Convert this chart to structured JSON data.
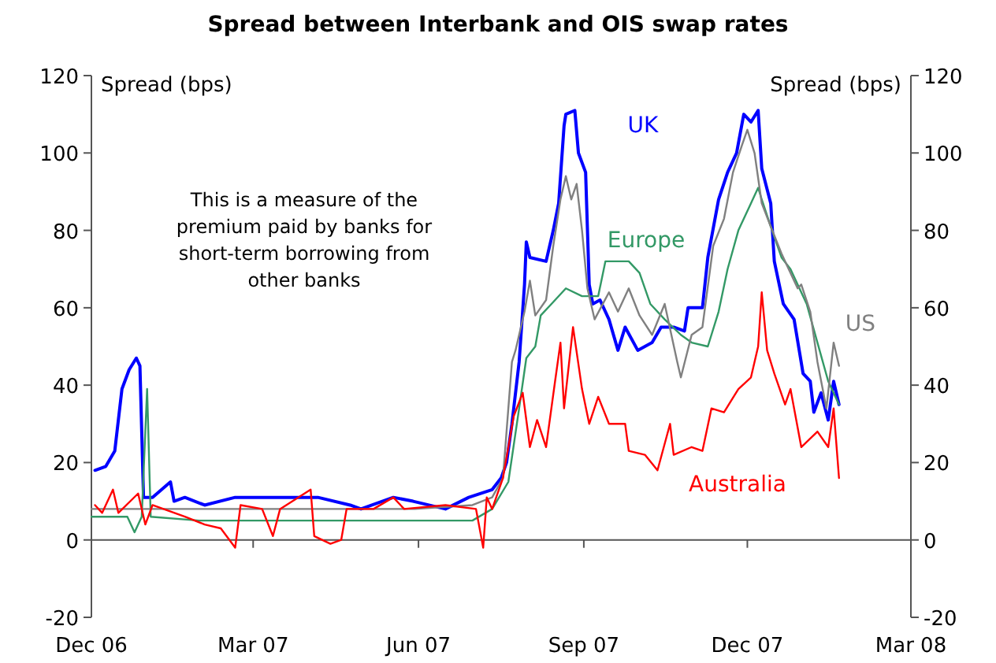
{
  "chart_data": {
    "type": "line",
    "title": "Spread between Interbank and OIS swap rates",
    "ylabel": "Spread (bps)",
    "y2label": "Spread (bps)",
    "annotations": [
      "This is a measure of the\npremium paid by banks for\nshort-term borrowing from\nother banks"
    ],
    "xlim": [
      "2006-12-01",
      "2008-03-01"
    ],
    "xticks": [
      {
        "value": "2006-12-01",
        "label": "Dec 06"
      },
      {
        "value": "2007-03-01",
        "label": "Mar 07"
      },
      {
        "value": "2007-06-01",
        "label": "Jun 07"
      },
      {
        "value": "2007-09-01",
        "label": "Sep 07"
      },
      {
        "value": "2007-12-01",
        "label": "Dec 07"
      },
      {
        "value": "2008-03-01",
        "label": "Mar 08"
      }
    ],
    "ylim": [
      -20,
      120
    ],
    "yticks": [
      -20,
      0,
      20,
      40,
      60,
      80,
      100,
      120
    ],
    "y2lim": [
      -20,
      120
    ],
    "y2ticks": [
      -20,
      0,
      20,
      40,
      60,
      80,
      100,
      120
    ],
    "legend": false,
    "marker": "none",
    "line_style": "solid",
    "series": [
      {
        "name": "UK",
        "color": "#0000ff",
        "x": [
          "2006-12-03",
          "2006-12-09",
          "2006-12-14",
          "2006-12-18",
          "2006-12-22",
          "2006-12-26",
          "2006-12-28",
          "2006-12-30",
          "2007-01-04",
          "2007-01-14",
          "2007-01-16",
          "2007-01-22",
          "2007-02-02",
          "2007-02-19",
          "2007-03-03",
          "2007-03-20",
          "2007-04-06",
          "2007-04-24",
          "2007-04-30",
          "2007-05-18",
          "2007-05-29",
          "2007-06-16",
          "2007-06-29",
          "2007-07-12",
          "2007-07-17",
          "2007-07-20",
          "2007-07-23",
          "2007-07-27",
          "2007-07-30",
          "2007-07-31",
          "2007-08-02",
          "2007-08-11",
          "2007-08-15",
          "2007-08-18",
          "2007-08-21",
          "2007-08-22",
          "2007-08-27",
          "2007-08-29",
          "2007-09-02",
          "2007-09-04",
          "2007-09-06",
          "2007-09-10",
          "2007-09-15",
          "2007-09-20",
          "2007-09-24",
          "2007-10-01",
          "2007-10-09",
          "2007-10-14",
          "2007-10-21",
          "2007-10-27",
          "2007-10-29",
          "2007-11-06",
          "2007-11-09",
          "2007-11-15",
          "2007-11-20",
          "2007-11-25",
          "2007-11-29",
          "2007-12-03",
          "2007-12-07",
          "2007-12-09",
          "2007-12-14",
          "2007-12-16",
          "2007-12-21",
          "2007-12-27",
          "2008-01-01",
          "2008-01-05",
          "2008-01-07",
          "2008-01-11",
          "2008-01-15",
          "2008-01-18",
          "2008-01-21"
        ],
        "values": [
          18,
          19,
          23,
          39,
          44,
          47,
          45,
          11,
          11,
          15,
          10,
          11,
          9,
          11,
          11,
          11,
          11,
          9,
          8,
          11,
          10,
          8,
          11,
          13,
          16,
          20,
          30,
          46,
          66,
          77,
          73,
          72,
          80,
          87,
          107,
          110,
          111,
          100,
          95,
          66,
          61,
          62,
          57,
          49,
          55,
          49,
          51,
          55,
          55,
          54,
          60,
          60,
          73,
          88,
          95,
          100,
          110,
          108,
          111,
          96,
          87,
          72,
          61,
          57,
          43,
          41,
          33,
          38,
          31,
          41,
          35
        ]
      },
      {
        "name": "Europe",
        "color": "#339966",
        "x": [
          "2006-12-01",
          "2006-12-21",
          "2006-12-25",
          "2006-12-29",
          "2007-01-01",
          "2007-01-03",
          "2007-01-30",
          "2007-03-31",
          "2007-05-30",
          "2007-07-01",
          "2007-07-12",
          "2007-07-21",
          "2007-07-27",
          "2007-07-31",
          "2007-08-05",
          "2007-08-08",
          "2007-08-14",
          "2007-08-22",
          "2007-08-31",
          "2007-09-09",
          "2007-09-13",
          "2007-09-17",
          "2007-09-26",
          "2007-10-02",
          "2007-10-08",
          "2007-10-16",
          "2007-10-25",
          "2007-10-31",
          "2007-11-09",
          "2007-11-15",
          "2007-11-20",
          "2007-11-26",
          "2007-12-03",
          "2007-12-07",
          "2007-12-09",
          "2007-12-14",
          "2007-12-20",
          "2007-12-25",
          "2008-01-03",
          "2008-01-09",
          "2008-01-15",
          "2008-01-21"
        ],
        "values": [
          6,
          6,
          2,
          6,
          39,
          6,
          5,
          5,
          5,
          5,
          8,
          15,
          34,
          47,
          50,
          58,
          61,
          65,
          63,
          63,
          72,
          72,
          72,
          69,
          61,
          57,
          53,
          51,
          50,
          59,
          70,
          80,
          87,
          91,
          88,
          81,
          73,
          70,
          61,
          51,
          41,
          35
        ]
      },
      {
        "name": "US",
        "color": "#808080",
        "x": [
          "2006-12-01",
          "2006-12-31",
          "2007-01-30",
          "2007-03-31",
          "2007-05-30",
          "2007-07-01",
          "2007-07-12",
          "2007-07-18",
          "2007-07-23",
          "2007-07-25",
          "2007-07-30",
          "2007-08-02",
          "2007-08-05",
          "2007-08-11",
          "2007-08-15",
          "2007-08-19",
          "2007-08-22",
          "2007-08-25",
          "2007-08-28",
          "2007-08-31",
          "2007-09-03",
          "2007-09-07",
          "2007-09-15",
          "2007-09-20",
          "2007-09-26",
          "2007-10-02",
          "2007-10-09",
          "2007-10-16",
          "2007-10-23",
          "2007-10-25",
          "2007-10-31",
          "2007-11-06",
          "2007-11-12",
          "2007-11-18",
          "2007-11-23",
          "2007-11-28",
          "2007-12-01",
          "2007-12-05",
          "2007-12-09",
          "2007-12-14",
          "2007-12-20",
          "2007-12-24",
          "2007-12-29",
          "2007-12-31",
          "2008-01-05",
          "2008-01-09",
          "2008-01-14",
          "2008-01-18",
          "2008-01-21"
        ],
        "values": [
          8,
          8,
          8,
          8,
          8,
          9,
          11,
          16,
          46,
          49,
          59,
          67,
          58,
          62,
          76,
          88,
          94,
          88,
          92,
          80,
          65,
          57,
          64,
          59,
          65,
          58,
          53,
          61,
          46,
          42,
          53,
          55,
          76,
          83,
          95,
          102,
          106,
          100,
          87,
          81,
          74,
          70,
          65,
          66,
          59,
          46,
          34,
          51,
          45
        ]
      },
      {
        "name": "Australia",
        "color": "#ff0000",
        "x": [
          "2006-12-03",
          "2006-12-07",
          "2006-12-13",
          "2006-12-16",
          "2006-12-27",
          "2006-12-31",
          "2007-01-04",
          "2007-01-22",
          "2007-02-02",
          "2007-02-11",
          "2007-02-19",
          "2007-02-22",
          "2007-03-06",
          "2007-03-12",
          "2007-03-16",
          "2007-04-02",
          "2007-04-04",
          "2007-04-13",
          "2007-04-19",
          "2007-04-22",
          "2007-05-07",
          "2007-05-18",
          "2007-05-24",
          "2007-06-16",
          "2007-07-03",
          "2007-07-07",
          "2007-07-09",
          "2007-07-12",
          "2007-07-18",
          "2007-07-24",
          "2007-07-29",
          "2007-08-02",
          "2007-08-06",
          "2007-08-11",
          "2007-08-16",
          "2007-08-19",
          "2007-08-21",
          "2007-08-26",
          "2007-08-31",
          "2007-09-04",
          "2007-09-09",
          "2007-09-15",
          "2007-09-24",
          "2007-09-26",
          "2007-10-05",
          "2007-10-12",
          "2007-10-19",
          "2007-10-21",
          "2007-10-31",
          "2007-11-06",
          "2007-11-11",
          "2007-11-18",
          "2007-11-26",
          "2007-12-03",
          "2007-12-07",
          "2007-12-09",
          "2007-12-12",
          "2007-12-16",
          "2007-12-22",
          "2007-12-25",
          "2007-12-31",
          "2008-01-09",
          "2008-01-15",
          "2008-01-18",
          "2008-01-21"
        ],
        "values": [
          9,
          7,
          13,
          7,
          12,
          4,
          9,
          6,
          4,
          3,
          -2,
          9,
          8,
          1,
          8,
          13,
          1,
          -1,
          0,
          8,
          8,
          11,
          8,
          9,
          8,
          -2,
          11,
          8,
          16,
          32,
          38,
          24,
          31,
          24,
          41,
          51,
          34,
          55,
          39,
          30,
          37,
          30,
          30,
          23,
          22,
          18,
          30,
          22,
          24,
          23,
          34,
          33,
          39,
          42,
          50,
          64,
          49,
          43,
          35,
          39,
          24,
          28,
          24,
          34,
          16
        ]
      }
    ]
  }
}
